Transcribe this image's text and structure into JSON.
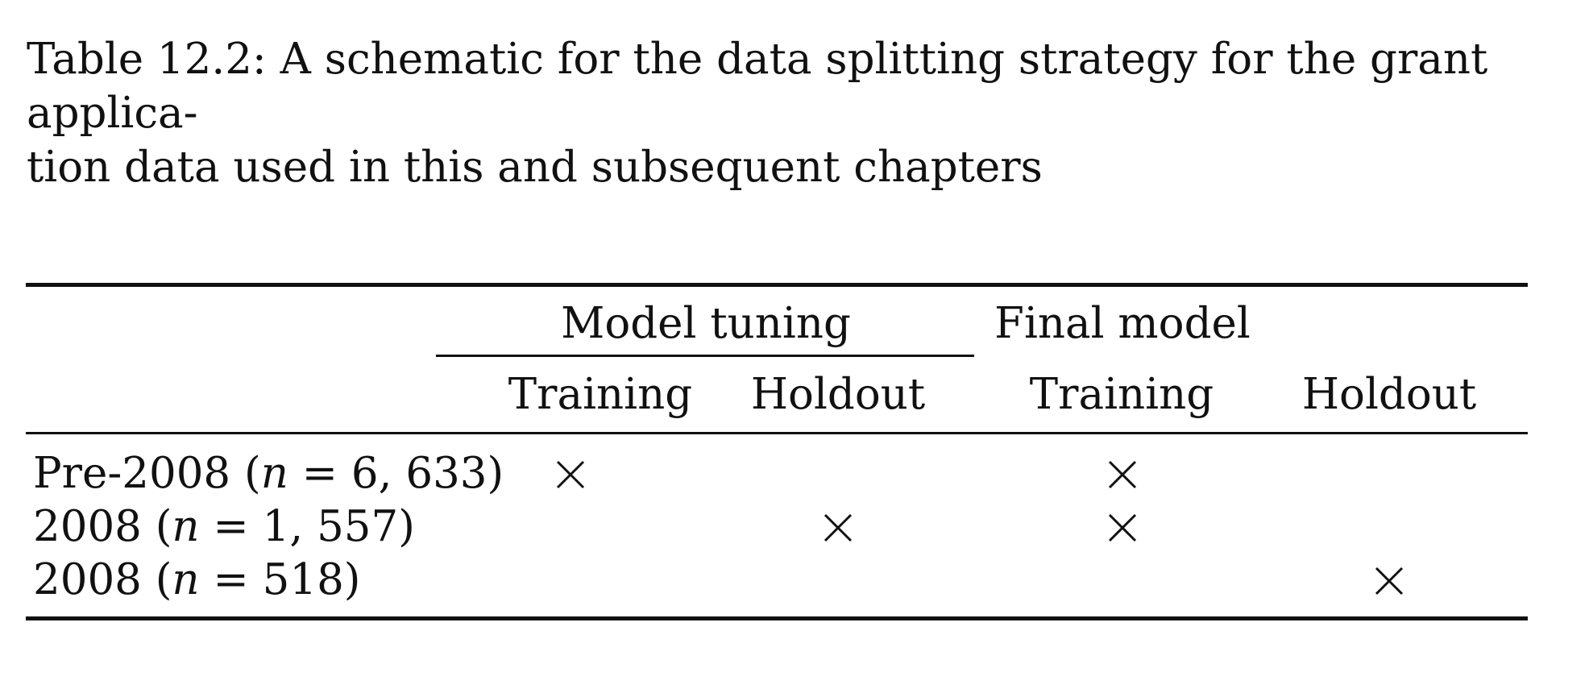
{
  "caption": "Table 12.2: A schematic for the data splitting strategy for the grant application data used in this and subsequent chapters",
  "caption_line1": "Table 12.2: A schematic for the data splitting strategy for the grant applica-",
  "caption_line2": "tion data used in this and subsequent chapters",
  "table": {
    "group_headers": {
      "model_tuning": "Model tuning",
      "final_model": "Final model"
    },
    "column_headers": {
      "tuning_training": "Training",
      "tuning_holdout": "Holdout",
      "final_training": "Training",
      "final_holdout": "Holdout"
    },
    "rows": [
      {
        "label_prefix": "Pre-2008 (",
        "label_n": "n",
        "label_suffix": " = 6, 633)",
        "tuning_training": "×",
        "tuning_holdout": "",
        "final_training": "×",
        "final_holdout": ""
      },
      {
        "label_prefix": "2008 (",
        "label_n": "n",
        "label_suffix": " = 1, 557)",
        "tuning_training": "",
        "tuning_holdout": "×",
        "final_training": "×",
        "final_holdout": ""
      },
      {
        "label_prefix": "2008 (",
        "label_n": "n",
        "label_suffix": " = 518)",
        "tuning_training": "",
        "tuning_holdout": "",
        "final_training": "",
        "final_holdout": "×"
      }
    ]
  }
}
